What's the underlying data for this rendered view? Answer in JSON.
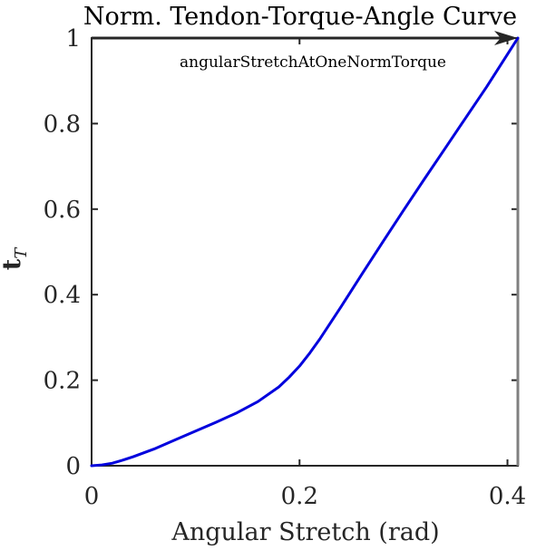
{
  "chart_data": {
    "type": "line",
    "title": "Norm. Tendon-Torque-Angle Curve",
    "xlabel": "Angular Stretch (rad)",
    "ylabel_main": "t",
    "ylabel_sub": "T",
    "xlim": [
      0,
      0.41
    ],
    "ylim": [
      0,
      1
    ],
    "xticks": [
      0,
      0.2,
      0.4
    ],
    "xtick_labels": [
      "0",
      "0.2",
      "0.4"
    ],
    "yticks": [
      0,
      0.2,
      0.4,
      0.6,
      0.8,
      1
    ],
    "ytick_labels": [
      "0",
      "0.2",
      "0.4",
      "0.6",
      "0.8",
      "1"
    ],
    "grid": false,
    "series": [
      {
        "color": "#0000dd",
        "x": [
          0,
          0.01,
          0.02,
          0.03,
          0.04,
          0.05,
          0.06,
          0.08,
          0.1,
          0.12,
          0.14,
          0.16,
          0.18,
          0.19,
          0.2,
          0.21,
          0.22,
          0.24,
          0.26,
          0.28,
          0.3,
          0.32,
          0.34,
          0.36,
          0.38,
          0.4,
          0.41
        ],
        "y": [
          0,
          0.002,
          0.006,
          0.013,
          0.021,
          0.03,
          0.039,
          0.06,
          0.081,
          0.102,
          0.124,
          0.15,
          0.184,
          0.207,
          0.233,
          0.264,
          0.298,
          0.372,
          0.448,
          0.523,
          0.597,
          0.67,
          0.742,
          0.814,
          0.886,
          0.962,
          1.0
        ]
      }
    ],
    "annotation": {
      "text": "angularStretchAtOneNormTorque",
      "arrow_from": [
        0,
        1
      ],
      "arrow_to": [
        0.41,
        1
      ],
      "arrow_color": "#262626",
      "vline_x": 0.41,
      "vline_color": "#808080"
    }
  }
}
